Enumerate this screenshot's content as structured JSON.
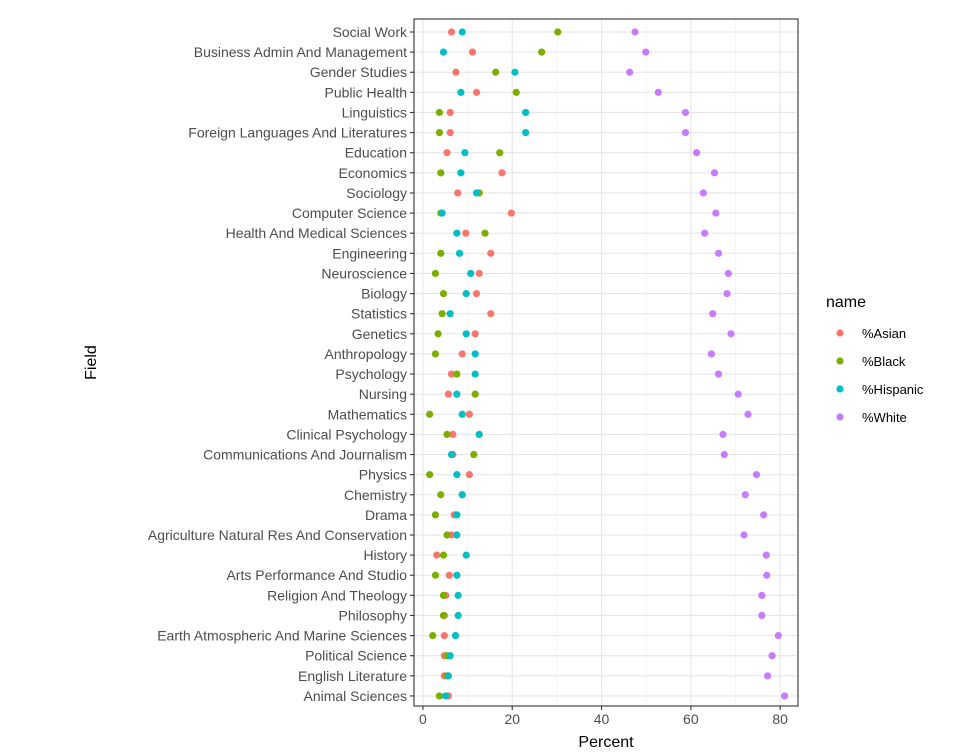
{
  "chart_data": {
    "type": "scatter",
    "xlabel": "Percent",
    "ylabel": "Field",
    "xlim": [
      -2,
      84
    ],
    "xticks": [
      0,
      20,
      40,
      60,
      80
    ],
    "grid": true,
    "legend": {
      "title": "name",
      "position": "right"
    },
    "categories": [
      "Social Work",
      "Business Admin And Management",
      "Gender Studies",
      "Public Health",
      "Linguistics",
      "Foreign Languages And Literatures",
      "Education",
      "Economics",
      "Sociology",
      "Computer Science",
      "Health And Medical Sciences",
      "Engineering",
      "Neuroscience",
      "Biology",
      "Statistics",
      "Genetics",
      "Anthropology",
      "Psychology",
      "Nursing",
      "Mathematics",
      "Clinical Psychology",
      "Communications And Journalism",
      "Physics",
      "Chemistry",
      "Drama",
      "Agriculture Natural Res And Conservation",
      "History",
      "Arts Performance And Studio",
      "Religion And Theology",
      "Philosophy",
      "Earth Atmospheric And Marine Sciences",
      "Political Science",
      "English Literature",
      "Animal Sciences"
    ],
    "series": [
      {
        "name": "%Asian",
        "color": "#F8766D",
        "values": [
          6.4,
          11.1,
          7.4,
          12.0,
          6.1,
          6.1,
          5.4,
          17.7,
          7.8,
          19.8,
          9.6,
          15.2,
          12.6,
          12.0,
          15.2,
          11.7,
          8.8,
          6.4,
          5.7,
          10.4,
          6.7,
          6.7,
          10.4,
          8.8,
          7.0,
          6.4,
          3.1,
          5.9,
          5.1,
          4.8,
          4.8,
          4.8,
          4.8,
          5.7
        ]
      },
      {
        "name": "%Black",
        "color": "#7CAE00",
        "values": [
          30.2,
          26.6,
          16.3,
          20.9,
          3.7,
          3.7,
          17.2,
          4.0,
          12.6,
          4.0,
          13.9,
          4.0,
          2.8,
          4.6,
          4.3,
          3.4,
          2.8,
          7.6,
          11.7,
          1.5,
          5.4,
          11.4,
          1.5,
          4.0,
          2.8,
          5.4,
          4.6,
          2.8,
          4.6,
          4.6,
          2.2,
          5.4,
          5.4,
          3.7
        ]
      },
      {
        "name": "%Hispanic",
        "color": "#00BFC4",
        "values": [
          8.8,
          4.6,
          20.6,
          8.5,
          23.0,
          23.0,
          9.4,
          8.5,
          12.0,
          4.3,
          7.6,
          8.2,
          10.7,
          9.7,
          6.1,
          9.7,
          11.7,
          11.7,
          7.6,
          8.8,
          12.6,
          6.4,
          7.6,
          8.8,
          7.6,
          7.6,
          9.7,
          7.6,
          7.9,
          7.9,
          7.3,
          6.1,
          5.7,
          5.1
        ]
      },
      {
        "name": "%White",
        "color": "#C77CFF",
        "values": [
          47.5,
          49.9,
          46.3,
          52.7,
          58.8,
          58.8,
          61.3,
          65.3,
          62.8,
          65.6,
          63.1,
          66.2,
          68.4,
          68.1,
          64.9,
          69.0,
          64.6,
          66.2,
          70.6,
          72.8,
          67.2,
          67.5,
          74.7,
          72.2,
          76.3,
          71.9,
          76.9,
          77.0,
          75.9,
          75.9,
          79.6,
          78.2,
          77.2,
          81.0
        ]
      }
    ]
  }
}
